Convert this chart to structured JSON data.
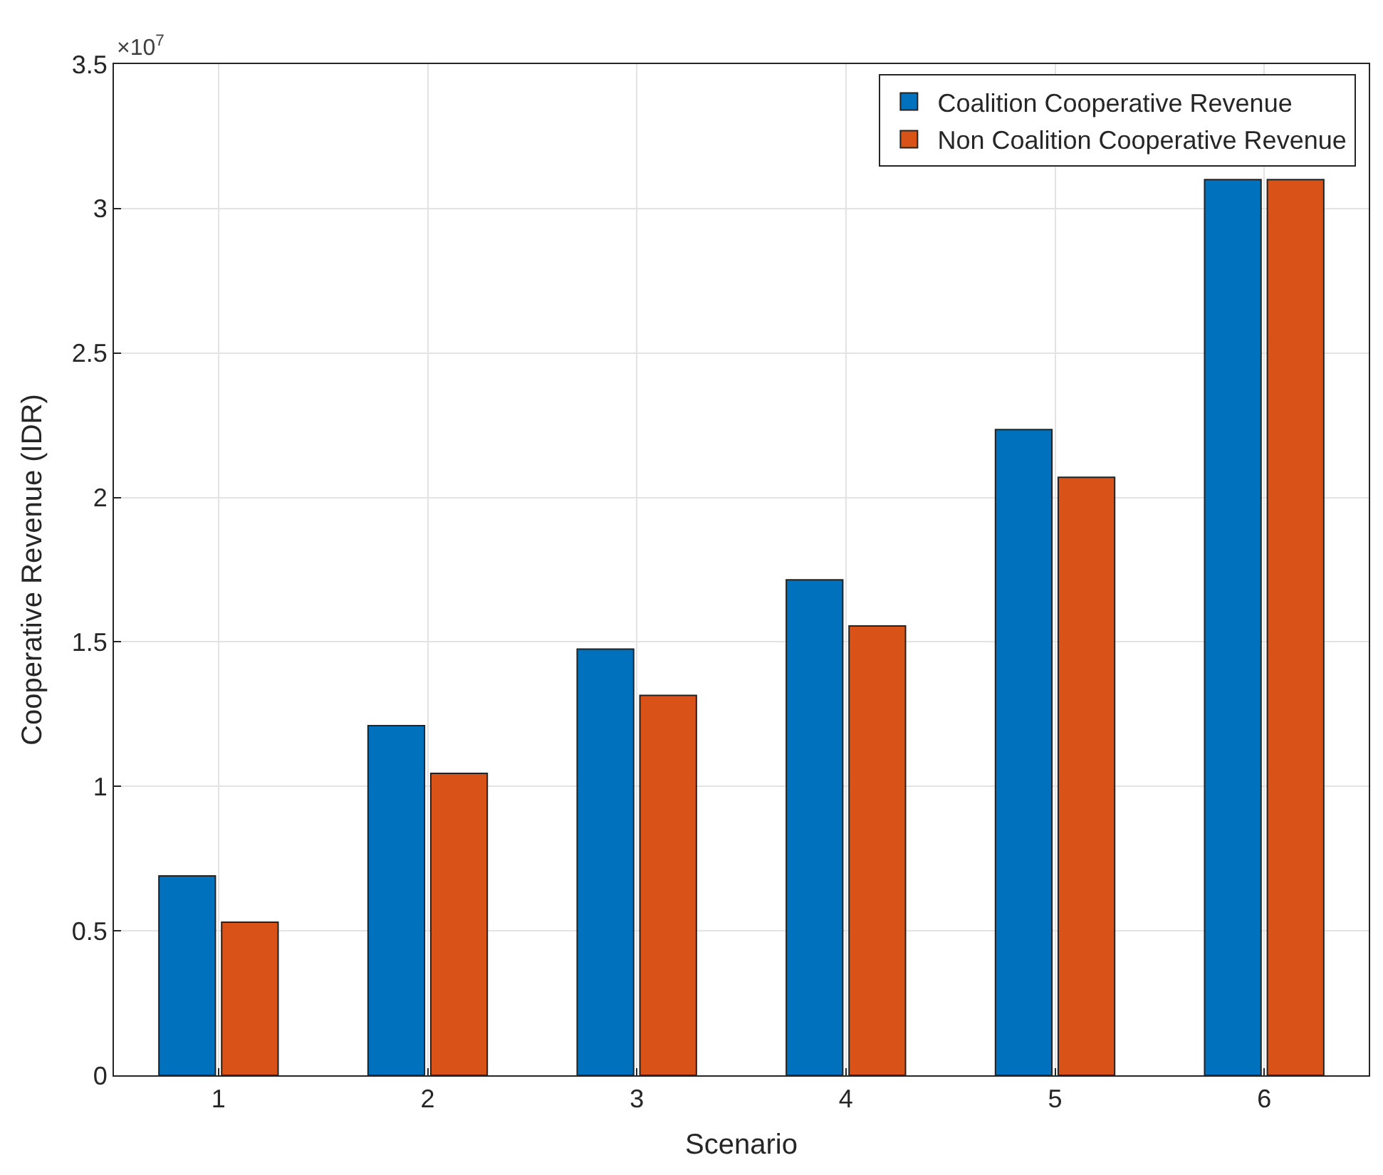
{
  "chart_data": {
    "type": "bar",
    "xlabel": "Scenario",
    "ylabel": "Cooperative Revenue (IDR)",
    "categories": [
      "1",
      "2",
      "3",
      "4",
      "5",
      "6"
    ],
    "series": [
      {
        "name": "Coalition Cooperative Revenue",
        "color": "#0072bd",
        "values": [
          0.69,
          1.21,
          1.475,
          1.715,
          2.235,
          3.1
        ]
      },
      {
        "name": "Non Coalition Cooperative Revenue",
        "color": "#d95319",
        "values": [
          0.53,
          1.045,
          1.315,
          1.555,
          2.07,
          3.1
        ]
      }
    ],
    "ylim": [
      0,
      3.5
    ],
    "yticks": [
      0,
      0.5,
      1,
      1.5,
      2,
      2.5,
      3,
      3.5
    ],
    "annotations": [
      "×10$^{7}$"
    ],
    "grid": true,
    "legend": "top right"
  }
}
